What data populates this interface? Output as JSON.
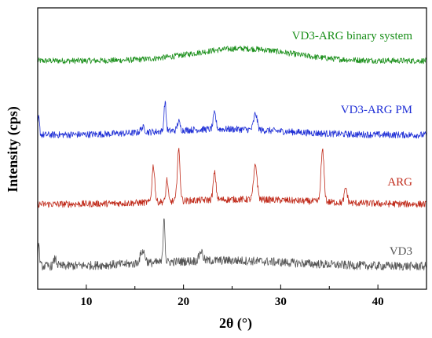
{
  "chart_data": {
    "type": "line",
    "xlabel": "2θ (°)",
    "ylabel": "Intensity (cps)",
    "xlim": [
      5,
      45
    ],
    "xticks": [
      10,
      20,
      30,
      40
    ],
    "yticks_shown": false,
    "grid": false,
    "legend": "inline-labels-right",
    "series": [
      {
        "name": "VD3-ARG binary system",
        "color": "#1a8f1a",
        "offset": 3,
        "baseline": 0.35,
        "noise": 0.06,
        "hump": {
          "center": 26,
          "width": 7,
          "height": 0.25
        },
        "peaks": []
      },
      {
        "name": "VD3-ARG PM",
        "color": "#1f2fd6",
        "offset": 2,
        "baseline": 0.15,
        "noise": 0.07,
        "hump": {
          "center": 24,
          "width": 9,
          "height": 0.12
        },
        "peaks": [
          {
            "x": 5.1,
            "height": 0.35,
            "width": 0.12
          },
          {
            "x": 15.8,
            "height": 0.1,
            "width": 0.3
          },
          {
            "x": 18.1,
            "height": 0.6,
            "width": 0.15
          },
          {
            "x": 19.5,
            "height": 0.18,
            "width": 0.2
          },
          {
            "x": 23.2,
            "height": 0.32,
            "width": 0.2
          },
          {
            "x": 27.4,
            "height": 0.33,
            "width": 0.25
          }
        ]
      },
      {
        "name": "ARG",
        "color": "#c02a1a",
        "offset": 1,
        "baseline": 0.05,
        "noise": 0.07,
        "hump": {
          "center": 26,
          "width": 10,
          "height": 0.1
        },
        "peaks": [
          {
            "x": 16.9,
            "height": 0.75,
            "width": 0.2
          },
          {
            "x": 18.3,
            "height": 0.45,
            "width": 0.15
          },
          {
            "x": 19.5,
            "height": 1.05,
            "width": 0.2
          },
          {
            "x": 23.2,
            "height": 0.55,
            "width": 0.2
          },
          {
            "x": 27.4,
            "height": 0.7,
            "width": 0.25
          },
          {
            "x": 34.3,
            "height": 1.05,
            "width": 0.22
          },
          {
            "x": 36.7,
            "height": 0.3,
            "width": 0.2
          }
        ]
      },
      {
        "name": "VD3",
        "color": "#555555",
        "offset": 0,
        "baseline": 0.1,
        "noise": 0.09,
        "hump": {
          "center": 24,
          "width": 10,
          "height": 0.12
        },
        "peaks": [
          {
            "x": 5.1,
            "height": 0.45,
            "width": 0.12
          },
          {
            "x": 6.8,
            "height": 0.15,
            "width": 0.2
          },
          {
            "x": 15.8,
            "height": 0.25,
            "width": 0.35
          },
          {
            "x": 18.0,
            "height": 0.95,
            "width": 0.13
          },
          {
            "x": 21.8,
            "height": 0.2,
            "width": 0.25
          }
        ]
      }
    ]
  }
}
